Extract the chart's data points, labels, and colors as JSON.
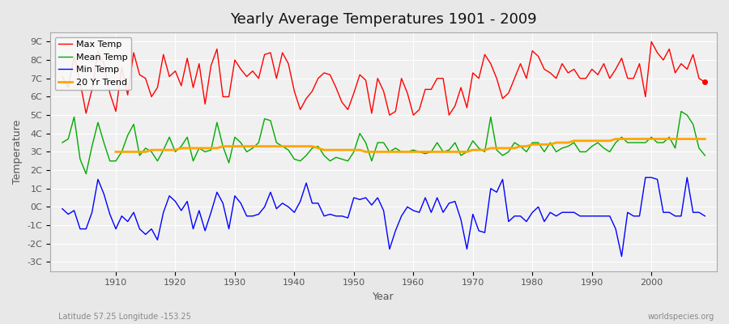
{
  "title": "Yearly Average Temperatures 1901 - 2009",
  "xlabel": "Year",
  "ylabel": "Temperature",
  "subtitle_left": "Latitude 57.25 Longitude -153.25",
  "subtitle_right": "worldspecies.org",
  "years": [
    1901,
    1902,
    1903,
    1904,
    1905,
    1906,
    1907,
    1908,
    1909,
    1910,
    1911,
    1912,
    1913,
    1914,
    1915,
    1916,
    1917,
    1918,
    1919,
    1920,
    1921,
    1922,
    1923,
    1924,
    1925,
    1926,
    1927,
    1928,
    1929,
    1930,
    1931,
    1932,
    1933,
    1934,
    1935,
    1936,
    1937,
    1938,
    1939,
    1940,
    1941,
    1942,
    1943,
    1944,
    1945,
    1946,
    1947,
    1948,
    1949,
    1950,
    1951,
    1952,
    1953,
    1954,
    1955,
    1956,
    1957,
    1958,
    1959,
    1960,
    1961,
    1962,
    1963,
    1964,
    1965,
    1966,
    1967,
    1968,
    1969,
    1970,
    1971,
    1972,
    1973,
    1974,
    1975,
    1976,
    1977,
    1978,
    1979,
    1980,
    1981,
    1982,
    1983,
    1984,
    1985,
    1986,
    1987,
    1988,
    1989,
    1990,
    1991,
    1992,
    1993,
    1994,
    1995,
    1996,
    1997,
    1998,
    1999,
    2000,
    2001,
    2002,
    2003,
    2004,
    2005,
    2006,
    2007,
    2008,
    2009
  ],
  "max_temp": [
    7.1,
    6.5,
    8.2,
    6.8,
    5.1,
    6.4,
    8.5,
    7.8,
    6.2,
    5.2,
    7.6,
    6.1,
    8.4,
    7.2,
    7.0,
    6.0,
    6.5,
    8.3,
    7.1,
    7.4,
    6.6,
    8.1,
    6.5,
    7.8,
    5.6,
    7.7,
    8.6,
    6.0,
    6.0,
    8.0,
    7.5,
    7.1,
    7.4,
    7.0,
    8.3,
    8.4,
    7.0,
    8.4,
    7.8,
    6.3,
    5.3,
    5.9,
    6.3,
    7.0,
    7.3,
    7.2,
    6.5,
    5.7,
    5.3,
    6.2,
    7.2,
    6.9,
    5.1,
    7.0,
    6.3,
    5.0,
    5.2,
    7.0,
    6.2,
    5.0,
    5.3,
    6.4,
    6.4,
    7.0,
    7.0,
    5.0,
    5.5,
    6.5,
    5.4,
    7.3,
    7.0,
    8.3,
    7.8,
    7.0,
    5.9,
    6.2,
    7.0,
    7.8,
    7.0,
    8.5,
    8.2,
    7.5,
    7.3,
    7.0,
    7.8,
    7.3,
    7.5,
    7.0,
    7.0,
    7.5,
    7.2,
    7.8,
    7.0,
    7.5,
    8.1,
    7.0,
    7.0,
    7.8,
    6.0,
    9.0,
    8.4,
    8.0,
    8.6,
    7.3,
    7.8,
    7.5,
    8.3,
    7.0,
    6.8
  ],
  "mean_temp": [
    3.5,
    3.7,
    4.9,
    2.6,
    1.8,
    3.3,
    4.6,
    3.5,
    2.5,
    2.5,
    3.0,
    3.9,
    4.5,
    2.8,
    3.2,
    3.0,
    2.5,
    3.1,
    3.8,
    3.0,
    3.3,
    3.8,
    2.5,
    3.2,
    3.0,
    3.1,
    4.6,
    3.3,
    2.4,
    3.8,
    3.5,
    3.0,
    3.2,
    3.5,
    4.8,
    4.7,
    3.5,
    3.3,
    3.1,
    2.6,
    2.5,
    2.8,
    3.2,
    3.3,
    2.8,
    2.5,
    2.7,
    2.6,
    2.5,
    3.0,
    4.0,
    3.5,
    2.5,
    3.5,
    3.5,
    3.0,
    3.2,
    3.0,
    3.0,
    3.1,
    3.0,
    2.9,
    3.0,
    3.5,
    3.0,
    3.1,
    3.5,
    2.8,
    3.0,
    3.6,
    3.2,
    3.0,
    4.9,
    3.1,
    2.8,
    3.0,
    3.5,
    3.3,
    3.0,
    3.5,
    3.5,
    3.0,
    3.5,
    3.0,
    3.2,
    3.3,
    3.5,
    3.0,
    3.0,
    3.3,
    3.5,
    3.2,
    3.0,
    3.5,
    3.8,
    3.5,
    3.5,
    3.5,
    3.5,
    3.8,
    3.5,
    3.5,
    3.8,
    3.2,
    5.2,
    5.0,
    4.5,
    3.2,
    2.8
  ],
  "min_temp": [
    -0.1,
    -0.4,
    -0.2,
    -1.2,
    -1.2,
    -0.3,
    1.5,
    0.7,
    -0.4,
    -1.2,
    -0.5,
    -0.8,
    -0.3,
    -1.2,
    -1.5,
    -1.2,
    -1.8,
    -0.3,
    0.6,
    0.3,
    -0.2,
    0.3,
    -1.2,
    -0.2,
    -1.3,
    -0.3,
    0.8,
    0.2,
    -1.2,
    0.6,
    0.2,
    -0.5,
    -0.5,
    -0.4,
    0.0,
    0.8,
    -0.1,
    0.2,
    0.0,
    -0.3,
    0.3,
    1.3,
    0.2,
    0.2,
    -0.5,
    -0.4,
    -0.5,
    -0.5,
    -0.6,
    0.5,
    0.4,
    0.5,
    0.1,
    0.5,
    -0.2,
    -2.3,
    -1.3,
    -0.5,
    0.0,
    -0.2,
    -0.3,
    0.5,
    -0.3,
    0.5,
    -0.3,
    0.2,
    0.3,
    -0.7,
    -2.3,
    -0.4,
    -1.3,
    -1.4,
    1.0,
    0.8,
    1.5,
    -0.8,
    -0.5,
    -0.5,
    -0.8,
    -0.3,
    0.0,
    -0.8,
    -0.3,
    -0.5,
    -0.3,
    -0.3,
    -0.3,
    -0.5,
    -0.5,
    -0.5,
    -0.5,
    -0.5,
    -0.5,
    -1.2,
    -2.7,
    -0.3,
    -0.5,
    -0.5,
    1.6,
    1.6,
    1.5,
    -0.3,
    -0.3,
    -0.5,
    -0.5,
    1.6,
    -0.3,
    -0.3,
    -0.5
  ],
  "trend_years": [
    1910,
    1911,
    1912,
    1913,
    1914,
    1915,
    1916,
    1917,
    1918,
    1919,
    1920,
    1921,
    1922,
    1923,
    1924,
    1925,
    1926,
    1927,
    1928,
    1929,
    1930,
    1931,
    1932,
    1933,
    1934,
    1935,
    1936,
    1937,
    1938,
    1939,
    1940,
    1941,
    1942,
    1943,
    1944,
    1945,
    1946,
    1947,
    1948,
    1949,
    1950,
    1951,
    1952,
    1953,
    1954,
    1955,
    1956,
    1957,
    1958,
    1959,
    1960,
    1961,
    1962,
    1963,
    1964,
    1965,
    1966,
    1967,
    1968,
    1969,
    1970,
    1971,
    1972,
    1973,
    1974,
    1975,
    1976,
    1977,
    1978,
    1979,
    1980,
    1981,
    1982,
    1983,
    1984,
    1985,
    1986,
    1987,
    1988,
    1989,
    1990,
    1991,
    1992,
    1993,
    1994,
    1995,
    1996,
    1997,
    1998,
    1999,
    2000,
    2001,
    2002,
    2003,
    2004,
    2005,
    2006,
    2007,
    2008,
    2009
  ],
  "trend_vals": [
    3.0,
    3.0,
    3.0,
    3.0,
    3.0,
    3.0,
    3.1,
    3.1,
    3.1,
    3.1,
    3.1,
    3.2,
    3.2,
    3.2,
    3.2,
    3.2,
    3.2,
    3.2,
    3.3,
    3.3,
    3.3,
    3.3,
    3.3,
    3.3,
    3.3,
    3.3,
    3.3,
    3.3,
    3.3,
    3.3,
    3.3,
    3.3,
    3.3,
    3.3,
    3.2,
    3.1,
    3.1,
    3.1,
    3.1,
    3.1,
    3.1,
    3.1,
    3.0,
    3.0,
    3.0,
    3.0,
    3.0,
    3.0,
    3.0,
    3.0,
    3.0,
    3.0,
    3.0,
    3.0,
    3.0,
    3.0,
    3.0,
    3.0,
    3.0,
    3.0,
    3.1,
    3.1,
    3.1,
    3.2,
    3.2,
    3.2,
    3.2,
    3.2,
    3.3,
    3.3,
    3.4,
    3.4,
    3.4,
    3.4,
    3.5,
    3.5,
    3.5,
    3.6,
    3.6,
    3.6,
    3.6,
    3.6,
    3.6,
    3.6,
    3.7,
    3.7,
    3.7,
    3.7,
    3.7,
    3.7,
    3.7,
    3.7,
    3.7,
    3.7,
    3.7,
    3.7,
    3.7,
    3.7,
    3.7,
    3.7
  ],
  "max_color": "#ff0000",
  "mean_color": "#00aa00",
  "min_color": "#0000ff",
  "trend_color": "#ffa500",
  "bg_color": "#e8e8e8",
  "plot_bg_color": "#f0f0f0",
  "grid_color": "#ffffff",
  "ylim": [
    -3.5,
    9.5
  ],
  "yticks": [
    -3,
    -2,
    -1,
    0,
    1,
    2,
    3,
    4,
    5,
    6,
    7,
    8,
    9
  ],
  "ytick_labels": [
    "-3C",
    "-2C",
    "-1C",
    "0C",
    "1C",
    "2C",
    "3C",
    "4C",
    "5C",
    "6C",
    "7C",
    "8C",
    "9C"
  ],
  "last_point_year": 2009,
  "last_point_max": 6.8,
  "figsize": [
    9.0,
    4.0
  ],
  "dpi": 100
}
